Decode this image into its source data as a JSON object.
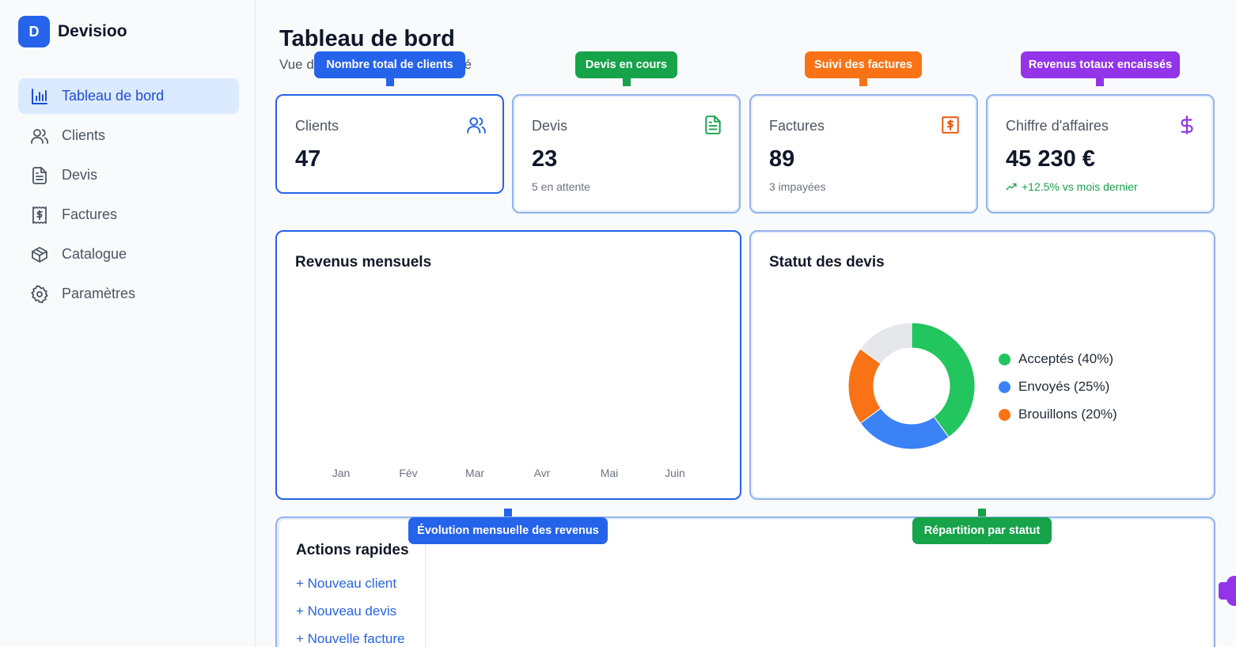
{
  "brand": {
    "logo_letter": "D",
    "name": "Devisioo"
  },
  "sidebar": {
    "items": [
      {
        "label": "Tableau de bord",
        "icon": "bar-chart-icon",
        "active": true
      },
      {
        "label": "Clients",
        "icon": "users-icon"
      },
      {
        "label": "Devis",
        "icon": "file-text-icon"
      },
      {
        "label": "Factures",
        "icon": "receipt-icon"
      },
      {
        "label": "Catalogue",
        "icon": "package-icon"
      },
      {
        "label": "Paramètres",
        "icon": "gear-icon"
      }
    ]
  },
  "header": {
    "title": "Tableau de bord",
    "subtitle_start": "Vue d",
    "subtitle_end": "té"
  },
  "tooltips": {
    "clients": "Nombre total de clients",
    "devis": "Devis en cours",
    "factures": "Suivi des factures",
    "revenue": "Revenus totaux encaissés",
    "monthly": "Évolution mensuelle des revenus",
    "status": "Répartition par statut"
  },
  "stats": {
    "clients": {
      "label": "Clients",
      "value": "47",
      "icon": "users-icon"
    },
    "devis": {
      "label": "Devis",
      "value": "23",
      "sub": "5 en attente",
      "icon": "file-text-icon"
    },
    "factures": {
      "label": "Factures",
      "value": "89",
      "sub": "3 impayées",
      "icon": "receipt-icon"
    },
    "revenue": {
      "label": "Chiffre d'affaires",
      "value": "45 230 €",
      "sub": "+12.5% vs mois dernier",
      "icon": "dollar-icon"
    }
  },
  "revenue_chart": {
    "title": "Revenus mensuels",
    "months": [
      "Jan",
      "Fév",
      "Mar",
      "Avr",
      "Mai",
      "Juin"
    ]
  },
  "status_chart": {
    "title": "Statut des devis",
    "legend": [
      "Acceptés (40%)",
      "Envoyés (25%)",
      "Brouillons (20%)"
    ]
  },
  "chart_data": {
    "type": "pie",
    "title": "Statut des devis",
    "categories": [
      "Acceptés",
      "Envoyés",
      "Brouillons",
      ""
    ],
    "values": [
      40,
      25,
      20,
      15
    ],
    "colors": [
      "#22c55e",
      "#3b82f6",
      "#f97316",
      "#e5e7eb"
    ],
    "donut": true,
    "legend_position": "right"
  },
  "quick_actions": {
    "title": "Actions rapides",
    "links": [
      "+ Nouveau client",
      "+ Nouveau devis",
      "+ Nouvelle facture"
    ]
  },
  "colors": {
    "primary": "#2563eb",
    "green": "#16a34a",
    "orange": "#f97316",
    "purple": "#9333ea"
  }
}
